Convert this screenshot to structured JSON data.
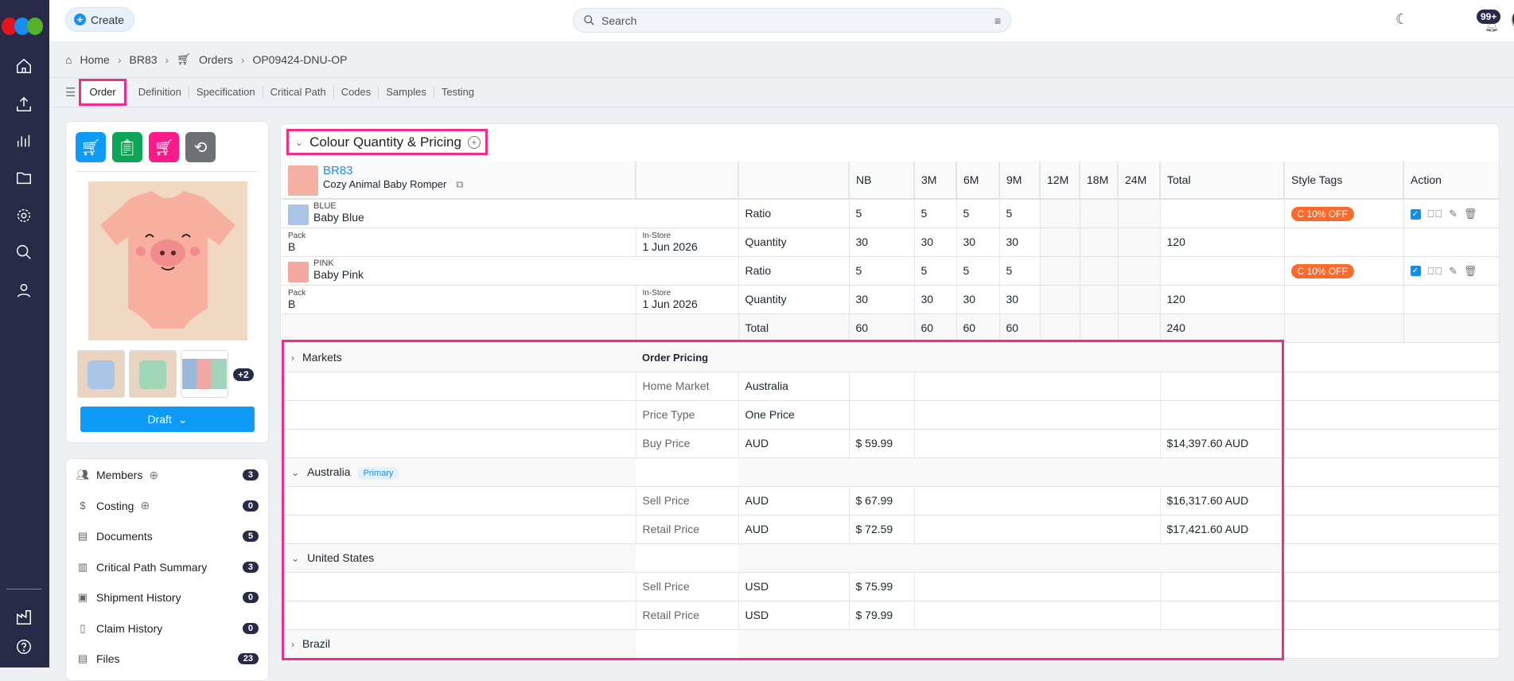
{
  "nav": {
    "items": [
      "home-icon",
      "upload-icon",
      "chart-icon",
      "folder-icon",
      "gear-icon",
      "search-icon",
      "user-icon"
    ],
    "bottom": [
      "factory-icon",
      "help-icon"
    ]
  },
  "topbar": {
    "create_label": "Create",
    "search_placeholder": "Search",
    "notifications": "99+"
  },
  "breadcrumb": [
    "Home",
    "BR83",
    "Orders",
    "OP09424-DNU-OP"
  ],
  "tabs": [
    "Order",
    "Definition",
    "Specification",
    "Critical Path",
    "Codes",
    "Samples",
    "Testing"
  ],
  "active_tab": "Order",
  "product_card": {
    "extra_images": "+2",
    "status": "Draft"
  },
  "action_colors": [
    "#0d9bf7",
    "#0aa655",
    "#ff1a8c",
    "#6d7075"
  ],
  "side_list": [
    {
      "label": "Members",
      "count": "3",
      "icon": "users-icon",
      "add": true
    },
    {
      "label": "Costing",
      "count": "0",
      "icon": "costing-icon",
      "add": true
    },
    {
      "label": "Documents",
      "count": "5",
      "icon": "document-icon"
    },
    {
      "label": "Critical Path Summary",
      "count": "3",
      "icon": "bar-chart-icon"
    },
    {
      "label": "Shipment History",
      "count": "0",
      "icon": "box-icon"
    },
    {
      "label": "Claim History",
      "count": "0",
      "icon": "clipboard-icon"
    },
    {
      "label": "Files",
      "count": "23",
      "icon": "file-icon"
    }
  ],
  "section": {
    "title": "Colour Quantity & Pricing"
  },
  "table": {
    "style_code": "BR83",
    "style_name": "Cozy Animal Baby Romper",
    "sizes": [
      "NB",
      "3M",
      "6M",
      "9M",
      "12M",
      "18M",
      "24M"
    ],
    "total_label": "Total",
    "style_tags_label": "Style Tags",
    "action_label": "Action",
    "colours": [
      {
        "code": "BLUE",
        "name": "Baby Blue",
        "swatch": "#a9c4e4",
        "ratio_label": "Ratio",
        "ratio": [
          "5",
          "5",
          "5",
          "5",
          "",
          "",
          ""
        ],
        "tag": "C 10% OFF",
        "pack_label": "Pack",
        "pack": "B",
        "instore_label": "In-Store",
        "instore": "1 Jun 2026",
        "qty_label": "Quantity",
        "qty": [
          "30",
          "30",
          "30",
          "30",
          "",
          "",
          ""
        ],
        "qty_total": "120"
      },
      {
        "code": "PINK",
        "name": "Baby Pink",
        "swatch": "#f4a9a0",
        "ratio_label": "Ratio",
        "ratio": [
          "5",
          "5",
          "5",
          "5",
          "",
          "",
          ""
        ],
        "tag": "C 10% OFF",
        "pack_label": "Pack",
        "pack": "B",
        "instore_label": "In-Store",
        "instore": "1 Jun 2026",
        "qty_label": "Quantity",
        "qty": [
          "30",
          "30",
          "30",
          "30",
          "",
          "",
          ""
        ],
        "qty_total": "120"
      }
    ],
    "totals": {
      "label": "Total",
      "sizes": [
        "60",
        "60",
        "60",
        "60",
        "",
        "",
        ""
      ],
      "total": "240"
    }
  },
  "pricing": {
    "markets_label": "Markets",
    "header": "Order Pricing",
    "rows": [
      {
        "type": "row",
        "label": "Home Market",
        "value": "Australia"
      },
      {
        "type": "row",
        "label": "Price Type",
        "value": "One Price"
      },
      {
        "type": "row",
        "label": "Buy Price",
        "value": "AUD",
        "price": "$ 59.99",
        "total": "$14,397.60 AUD"
      },
      {
        "type": "group",
        "label": "Australia",
        "badge": "Primary",
        "expanded": true
      },
      {
        "type": "row",
        "label": "Sell Price",
        "value": "AUD",
        "price": "$ 67.99",
        "total": "$16,317.60 AUD"
      },
      {
        "type": "row",
        "label": "Retail Price",
        "value": "AUD",
        "price": "$ 72.59",
        "total": "$17,421.60 AUD"
      },
      {
        "type": "group",
        "label": "United States",
        "expanded": true
      },
      {
        "type": "row",
        "label": "Sell Price",
        "value": "USD",
        "price": "$ 75.99"
      },
      {
        "type": "row",
        "label": "Retail Price",
        "value": "USD",
        "price": "$ 79.99"
      },
      {
        "type": "group",
        "label": "Brazil",
        "expanded": false
      }
    ]
  }
}
